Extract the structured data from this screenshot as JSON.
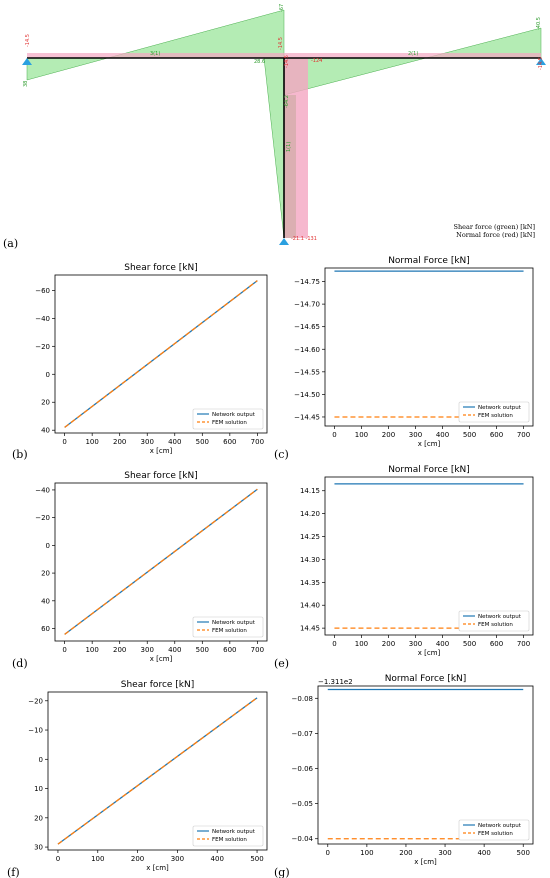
{
  "panel_labels": [
    "(a)",
    "(b)",
    "(c)",
    "(d)",
    "(e)",
    "(f)",
    "(g)"
  ],
  "diagram": {
    "legend_line1": "Shear force (green) [kN]",
    "legend_line2": "Normal force (red) [kN]",
    "labels": [
      {
        "text": "-14.5",
        "color": "#e03030"
      },
      {
        "text": "38",
        "color": "#2a9a2a"
      },
      {
        "text": "3(1)",
        "color": "#2a9a2a"
      },
      {
        "text": "28.6",
        "color": "#2a9a2a"
      },
      {
        "text": "-67",
        "color": "#2a9a2a"
      },
      {
        "text": "-14.5",
        "color": "#e03030"
      },
      {
        "text": "-14.5",
        "color": "#e03030"
      },
      {
        "text": "-124",
        "color": "#e03030"
      },
      {
        "text": "2(1)",
        "color": "#2a9a2a"
      },
      {
        "text": "-40.5",
        "color": "#2a9a2a"
      },
      {
        "text": "-14.5",
        "color": "#e03030"
      },
      {
        "text": "1(1)",
        "color": "#2a9a2a"
      },
      {
        "text": "-64.2",
        "color": "#2a9a2a"
      },
      {
        "text": "-21.1 -131",
        "color": "#e03030"
      }
    ],
    "colors": {
      "shear_fill": "#9be59b",
      "normal_fill": "#f4a6c2",
      "beam": "#000000",
      "support": "#2aa0e0"
    }
  },
  "chart_data": [
    {
      "id": "b",
      "type": "line",
      "title": "Shear force [kN]",
      "xlabel": "x [cm]",
      "ylabel": "",
      "xlim": [
        -35,
        735
      ],
      "ylim": [
        42,
        -71
      ],
      "y_inverted": true,
      "xticks": [
        0,
        100,
        200,
        300,
        400,
        500,
        600,
        700
      ],
      "yticks": [
        40,
        20,
        0,
        -20,
        -40,
        -60
      ],
      "ytick_labels": [
        "40",
        "20",
        "0",
        "−20",
        "−40",
        "−60"
      ],
      "offset_label": "",
      "legend": "lower-right",
      "series": [
        {
          "name": "Network output",
          "color": "#1f77b4",
          "dash": "",
          "x": [
            0,
            700
          ],
          "y": [
            38,
            -67
          ]
        },
        {
          "name": "FEM solution",
          "color": "#ff7f0e",
          "dash": "5,3",
          "x": [
            0,
            700
          ],
          "y": [
            38,
            -67
          ]
        }
      ]
    },
    {
      "id": "c",
      "type": "line",
      "title": "Normal Force [kN]",
      "xlabel": "x [cm]",
      "ylabel": "",
      "xlim": [
        -35,
        735
      ],
      "ylim": [
        -14.43,
        -14.78
      ],
      "y_inverted": true,
      "xticks": [
        0,
        100,
        200,
        300,
        400,
        500,
        600,
        700
      ],
      "yticks": [
        -14.45,
        -14.5,
        -14.55,
        -14.6,
        -14.65,
        -14.7,
        -14.75
      ],
      "ytick_labels": [
        "−14.45",
        "−14.50",
        "−14.55",
        "−14.60",
        "−14.65",
        "−14.70",
        "−14.75"
      ],
      "offset_label": "",
      "legend": "lower-right",
      "series": [
        {
          "name": "Network output",
          "color": "#1f77b4",
          "dash": "",
          "x": [
            0,
            700
          ],
          "y": [
            -14.773,
            -14.773
          ]
        },
        {
          "name": "FEM solution",
          "color": "#ff7f0e",
          "dash": "5,3",
          "x": [
            0,
            700
          ],
          "y": [
            -14.45,
            -14.45
          ]
        }
      ]
    },
    {
      "id": "d",
      "type": "line",
      "title": "Shear force [kN]",
      "xlabel": "x [cm]",
      "ylabel": "",
      "xlim": [
        -35,
        735
      ],
      "ylim": [
        69,
        -45
      ],
      "y_inverted": true,
      "xticks": [
        0,
        100,
        200,
        300,
        400,
        500,
        600,
        700
      ],
      "yticks": [
        60,
        40,
        20,
        0,
        -20,
        -40
      ],
      "ytick_labels": [
        "60",
        "40",
        "20",
        "0",
        "−20",
        "−40"
      ],
      "offset_label": "",
      "legend": "lower-right",
      "series": [
        {
          "name": "Network output",
          "color": "#1f77b4",
          "dash": "",
          "x": [
            0,
            700
          ],
          "y": [
            64.2,
            -40.5
          ]
        },
        {
          "name": "FEM solution",
          "color": "#ff7f0e",
          "dash": "5,3",
          "x": [
            0,
            700
          ],
          "y": [
            64.2,
            -40.5
          ]
        }
      ]
    },
    {
      "id": "e",
      "type": "line",
      "title": "Normal Force [kN]",
      "xlabel": "x [cm]",
      "ylabel": "",
      "xlim": [
        -35,
        735
      ],
      "ylim": [
        14.465,
        14.12
      ],
      "y_inverted": true,
      "xticks": [
        0,
        100,
        200,
        300,
        400,
        500,
        600,
        700
      ],
      "yticks": [
        14.15,
        14.2,
        14.25,
        14.3,
        14.35,
        14.4,
        14.45
      ],
      "ytick_labels": [
        "14.15",
        "14.20",
        "14.25",
        "14.30",
        "14.35",
        "14.40",
        "14.45"
      ],
      "offset_label": "",
      "legend": "lower-right",
      "series": [
        {
          "name": "Network output",
          "color": "#1f77b4",
          "dash": "",
          "x": [
            0,
            700
          ],
          "y": [
            14.135,
            14.135
          ]
        },
        {
          "name": "FEM solution",
          "color": "#ff7f0e",
          "dash": "5,3",
          "x": [
            0,
            700
          ],
          "y": [
            14.45,
            14.45
          ]
        }
      ]
    },
    {
      "id": "f",
      "type": "line",
      "title": "Shear force [kN]",
      "xlabel": "x [cm]",
      "ylabel": "",
      "xlim": [
        -25,
        525
      ],
      "ylim": [
        31,
        -23
      ],
      "y_inverted": true,
      "xticks": [
        0,
        100,
        200,
        300,
        400,
        500
      ],
      "yticks": [
        30,
        20,
        10,
        0,
        -10,
        -20
      ],
      "ytick_labels": [
        "30",
        "20",
        "10",
        "0",
        "−10",
        "−20"
      ],
      "offset_label": "",
      "legend": "lower-right",
      "series": [
        {
          "name": "Network output",
          "color": "#1f77b4",
          "dash": "",
          "x": [
            0,
            500
          ],
          "y": [
            29,
            -21
          ]
        },
        {
          "name": "FEM solution",
          "color": "#ff7f0e",
          "dash": "5,3",
          "x": [
            0,
            500
          ],
          "y": [
            29,
            -21
          ]
        }
      ]
    },
    {
      "id": "g",
      "type": "line",
      "title": "Normal Force [kN]",
      "xlabel": "x [cm]",
      "ylabel": "",
      "xlim": [
        -25,
        525
      ],
      "ylim": [
        -0.0385,
        -0.0835
      ],
      "y_inverted": true,
      "xticks": [
        0,
        100,
        200,
        300,
        400,
        500
      ],
      "yticks": [
        -0.04,
        -0.05,
        -0.06,
        -0.07,
        -0.08
      ],
      "ytick_labels": [
        "−0.04",
        "−0.05",
        "−0.06",
        "−0.07",
        "−0.08"
      ],
      "offset_label": "−1.311e2",
      "legend": "lower-right",
      "series": [
        {
          "name": "Network output",
          "color": "#1f77b4",
          "dash": "",
          "x": [
            0,
            500
          ],
          "y": [
            -0.0825,
            -0.0825
          ]
        },
        {
          "name": "FEM solution",
          "color": "#ff7f0e",
          "dash": "5,3",
          "x": [
            0,
            500
          ],
          "y": [
            -0.04,
            -0.04
          ]
        }
      ]
    }
  ]
}
